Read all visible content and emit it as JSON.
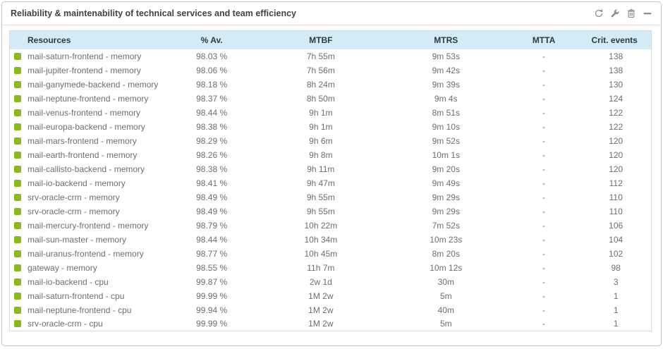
{
  "widget": {
    "title": "Reliability & maintenability of technical services and team efficiency",
    "toolbar_icons": [
      "refresh-icon",
      "wrench-icon",
      "trash-icon",
      "collapse-icon"
    ]
  },
  "colors": {
    "status_ok": "#88b917",
    "header_bg": "#d2ebf7",
    "table_border": "#ccdfe8",
    "icon_gray": "#8e8e8e",
    "row_text": "#6e6e6e"
  },
  "table": {
    "columns": [
      "Resources",
      "% Av.",
      "MTBF",
      "MTRS",
      "MTTA",
      "Crit. events"
    ],
    "rows": [
      {
        "status": "ok",
        "resource": "mail-saturn-frontend - memory",
        "availability": "98.03 %",
        "mtbf": "7h 55m",
        "mtrs": "9m 53s",
        "mtta": "-",
        "crit_events": "138"
      },
      {
        "status": "ok",
        "resource": "mail-jupiter-frontend - memory",
        "availability": "98.06 %",
        "mtbf": "7h 56m",
        "mtrs": "9m 42s",
        "mtta": "-",
        "crit_events": "138"
      },
      {
        "status": "ok",
        "resource": "mail-ganymede-backend - memory",
        "availability": "98.18 %",
        "mtbf": "8h 24m",
        "mtrs": "9m 39s",
        "mtta": "-",
        "crit_events": "130"
      },
      {
        "status": "ok",
        "resource": "mail-neptune-frontend - memory",
        "availability": "98.37 %",
        "mtbf": "8h 50m",
        "mtrs": "9m 4s",
        "mtta": "-",
        "crit_events": "124"
      },
      {
        "status": "ok",
        "resource": "mail-venus-frontend - memory",
        "availability": "98.44 %",
        "mtbf": "9h 1m",
        "mtrs": "8m 51s",
        "mtta": "-",
        "crit_events": "122"
      },
      {
        "status": "ok",
        "resource": "mail-europa-backend - memory",
        "availability": "98.38 %",
        "mtbf": "9h 1m",
        "mtrs": "9m 10s",
        "mtta": "-",
        "crit_events": "122"
      },
      {
        "status": "ok",
        "resource": "mail-mars-frontend - memory",
        "availability": "98.29 %",
        "mtbf": "9h 6m",
        "mtrs": "9m 52s",
        "mtta": "-",
        "crit_events": "120"
      },
      {
        "status": "ok",
        "resource": "mail-earth-frontend - memory",
        "availability": "98.26 %",
        "mtbf": "9h 8m",
        "mtrs": "10m 1s",
        "mtta": "-",
        "crit_events": "120"
      },
      {
        "status": "ok",
        "resource": "mail-callisto-backend - memory",
        "availability": "98.38 %",
        "mtbf": "9h 11m",
        "mtrs": "9m 20s",
        "mtta": "-",
        "crit_events": "120"
      },
      {
        "status": "ok",
        "resource": "mail-io-backend - memory",
        "availability": "98.41 %",
        "mtbf": "9h 47m",
        "mtrs": "9m 49s",
        "mtta": "-",
        "crit_events": "112"
      },
      {
        "status": "ok",
        "resource": "srv-oracle-crm - memory",
        "availability": "98.49 %",
        "mtbf": "9h 55m",
        "mtrs": "9m 29s",
        "mtta": "-",
        "crit_events": "110"
      },
      {
        "status": "ok",
        "resource": "srv-oracle-crm - memory",
        "availability": "98.49 %",
        "mtbf": "9h 55m",
        "mtrs": "9m 29s",
        "mtta": "-",
        "crit_events": "110"
      },
      {
        "status": "ok",
        "resource": "mail-mercury-frontend - memory",
        "availability": "98.79 %",
        "mtbf": "10h 22m",
        "mtrs": "7m 52s",
        "mtta": "-",
        "crit_events": "106"
      },
      {
        "status": "ok",
        "resource": "mail-sun-master - memory",
        "availability": "98.44 %",
        "mtbf": "10h 34m",
        "mtrs": "10m 23s",
        "mtta": "-",
        "crit_events": "104"
      },
      {
        "status": "ok",
        "resource": "mail-uranus-frontend - memory",
        "availability": "98.77 %",
        "mtbf": "10h 45m",
        "mtrs": "8m 20s",
        "mtta": "-",
        "crit_events": "102"
      },
      {
        "status": "ok",
        "resource": "gateway - memory",
        "availability": "98.55 %",
        "mtbf": "11h 7m",
        "mtrs": "10m 12s",
        "mtta": "-",
        "crit_events": "98"
      },
      {
        "status": "ok",
        "resource": "mail-io-backend - cpu",
        "availability": "99.87 %",
        "mtbf": "2w 1d",
        "mtrs": "30m",
        "mtta": "-",
        "crit_events": "3"
      },
      {
        "status": "ok",
        "resource": "mail-saturn-frontend - cpu",
        "availability": "99.99 %",
        "mtbf": "1M 2w",
        "mtrs": "5m",
        "mtta": "-",
        "crit_events": "1"
      },
      {
        "status": "ok",
        "resource": "mail-neptune-frontend - cpu",
        "availability": "99.94 %",
        "mtbf": "1M 2w",
        "mtrs": "40m",
        "mtta": "-",
        "crit_events": "1"
      },
      {
        "status": "ok",
        "resource": "srv-oracle-crm - cpu",
        "availability": "99.99 %",
        "mtbf": "1M 2w",
        "mtrs": "5m",
        "mtta": "-",
        "crit_events": "1"
      }
    ]
  }
}
